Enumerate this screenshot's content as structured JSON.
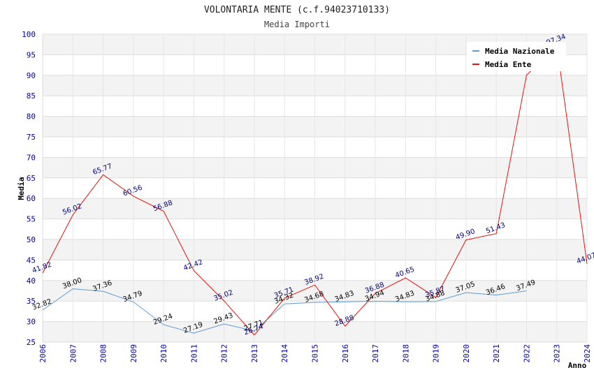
{
  "chart_data": {
    "type": "line",
    "title": "VOLONTARIA MENTE (c.f.94023710133)",
    "subtitle": "Media Importi",
    "xlabel": "Anno",
    "ylabel": "Media",
    "ylim": [
      25,
      100
    ],
    "ytick_step": 5,
    "x": [
      "2006",
      "2007",
      "2008",
      "2009",
      "2010",
      "2011",
      "2012",
      "2013",
      "2014",
      "2015",
      "2016",
      "2017",
      "2018",
      "2019",
      "2020",
      "2021",
      "2022",
      "2023",
      "2024"
    ],
    "series": [
      {
        "name": "Media Nazionale",
        "color": "#5b9bd5",
        "label_color": "#000000",
        "values": [
          32.82,
          38.0,
          37.36,
          34.79,
          29.24,
          27.19,
          29.43,
          27.71,
          34.32,
          34.68,
          34.83,
          34.94,
          34.83,
          34.88,
          37.05,
          36.46,
          37.49,
          null,
          null
        ],
        "labels": [
          "32.82",
          "38.00",
          "37.36",
          "34.79",
          "29.24",
          "27.19",
          "29.43",
          "27.71",
          "34.32",
          "34.68",
          "34.83",
          "34.94",
          "34.83",
          "34.88",
          "37.05",
          "36.46",
          "37.49",
          null,
          null
        ]
      },
      {
        "name": "Media Ente",
        "color": "#e8120c",
        "label_color": "#00007a",
        "values": [
          41.82,
          56.02,
          65.77,
          60.56,
          56.88,
          42.42,
          35.02,
          26.74,
          35.71,
          38.92,
          28.88,
          36.88,
          40.65,
          35.87,
          49.9,
          51.43,
          90.0,
          97.34,
          44.07
        ],
        "labels": [
          "41.82",
          "56.02",
          "65.77",
          "60.56",
          "56.88",
          "42.42",
          "35.02",
          "26.74",
          "35.71",
          "38.92",
          "28.88",
          "36.88",
          "40.65",
          "35.87",
          "49.90",
          "51.43",
          null,
          "97.34",
          "44.07"
        ]
      }
    ],
    "legend_position": "top-right",
    "grid": true
  }
}
